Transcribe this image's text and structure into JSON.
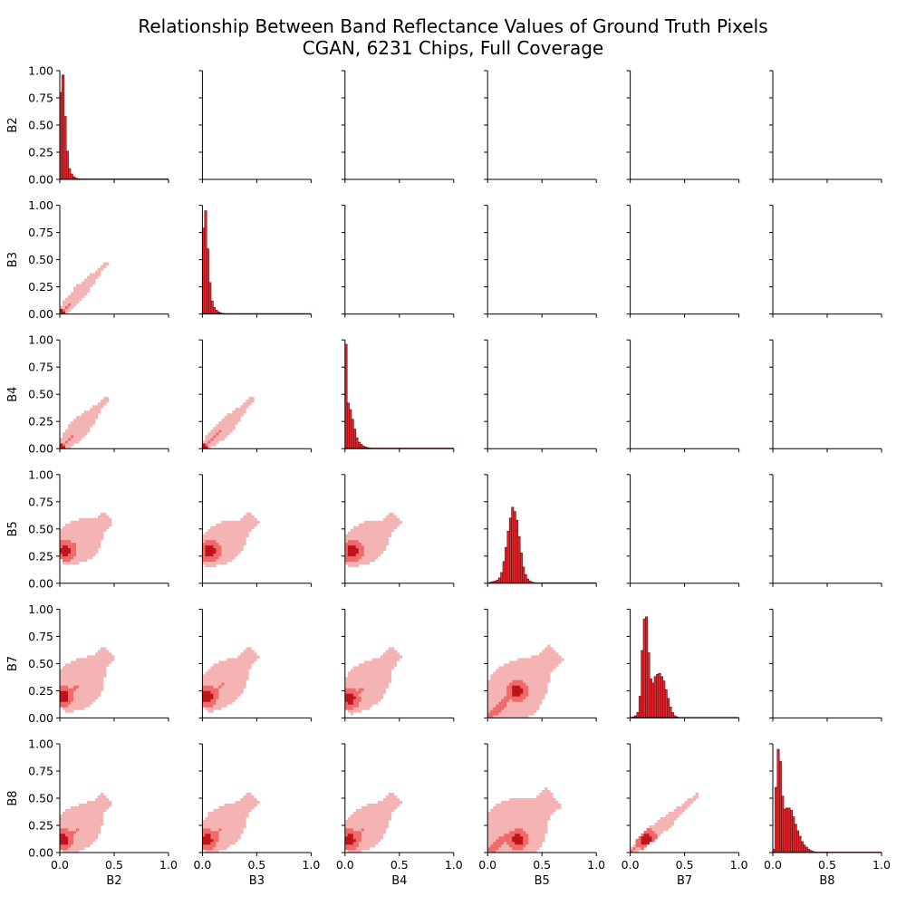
{
  "chart_data": {
    "type": "pairplot",
    "title": "Relationship Between Band Reflectance Values of Ground Truth Pixels",
    "subtitle": "CGAN, 6231 Chips, Full Coverage",
    "variables": [
      "B2",
      "B3",
      "B4",
      "B5",
      "B7",
      "B8"
    ],
    "xlim": [
      0.0,
      1.0
    ],
    "ylim": [
      0.0,
      1.0
    ],
    "x_ticks": [
      "0.0",
      "0.5",
      "1.0"
    ],
    "y_ticks": [
      "0.00",
      "0.25",
      "0.50",
      "0.75",
      "1.00"
    ],
    "grid": false,
    "colors": {
      "bar": "#e8262e",
      "bar_edge": "#5a0a0c",
      "heat_light": "#f4b4b4",
      "heat_mid": "#f06a6a",
      "heat_dark": "#c0141c"
    },
    "diagonal": {
      "type": "histogram",
      "bin_width": 0.02,
      "histograms": {
        "B2": [
          0.8,
          0.96,
          0.58,
          0.26,
          0.1,
          0.05,
          0.025,
          0.012,
          0.006,
          0.003
        ],
        "B3": [
          0.79,
          0.95,
          0.6,
          0.29,
          0.12,
          0.06,
          0.035,
          0.02,
          0.01,
          0.005,
          0.003
        ],
        "B4": [
          0.96,
          0.42,
          0.36,
          0.27,
          0.18,
          0.1,
          0.06,
          0.04,
          0.025,
          0.015,
          0.01,
          0.006,
          0.003
        ],
        "B5": [
          0.005,
          0.01,
          0.015,
          0.02,
          0.03,
          0.05,
          0.1,
          0.2,
          0.33,
          0.48,
          0.6,
          0.7,
          0.66,
          0.58,
          0.43,
          0.28,
          0.15,
          0.08,
          0.04,
          0.02,
          0.01,
          0.006
        ],
        "B7": [
          0.005,
          0.01,
          0.02,
          0.05,
          0.2,
          0.62,
          0.91,
          0.93,
          0.6,
          0.36,
          0.32,
          0.38,
          0.4,
          0.41,
          0.38,
          0.34,
          0.26,
          0.18,
          0.1,
          0.05,
          0.02,
          0.01,
          0.005
        ],
        "B8": [
          0.03,
          0.6,
          0.95,
          0.84,
          0.52,
          0.4,
          0.41,
          0.41,
          0.39,
          0.33,
          0.26,
          0.2,
          0.15,
          0.1,
          0.07,
          0.05,
          0.03,
          0.02,
          0.01,
          0.006,
          0.003
        ]
      }
    },
    "lower": {
      "type": "heatmap_2d_histogram",
      "panels": {
        "B3|B2": {
          "core": [
            [
              0.0,
              0.0
            ],
            [
              0.43,
              0.47
            ]
          ],
          "width": 0.05
        },
        "B4|B2": {
          "core": [
            [
              0.0,
              0.0
            ],
            [
              0.43,
              0.46
            ]
          ],
          "width": 0.07
        },
        "B4|B3": {
          "core": [
            [
              0.0,
              0.0
            ],
            [
              0.47,
              0.46
            ]
          ],
          "width": 0.06
        },
        "B5|B2": {
          "core": [
            [
              0.0,
              0.25
            ],
            [
              0.44,
              0.6
            ]
          ],
          "width": 0.16,
          "hot": [
            0.05,
            0.3
          ]
        },
        "B5|B3": {
          "core": [
            [
              0.0,
              0.22
            ],
            [
              0.47,
              0.6
            ]
          ],
          "width": 0.15,
          "hot": [
            0.07,
            0.3
          ]
        },
        "B5|B4": {
          "core": [
            [
              0.0,
              0.22
            ],
            [
              0.47,
              0.6
            ]
          ],
          "width": 0.15,
          "hot": [
            0.07,
            0.3
          ]
        },
        "B7|B2": {
          "core": [
            [
              0.0,
              0.12
            ],
            [
              0.44,
              0.6
            ]
          ],
          "width": 0.18,
          "hot": [
            0.03,
            0.2
          ]
        },
        "B7|B3": {
          "core": [
            [
              0.0,
              0.12
            ],
            [
              0.47,
              0.6
            ]
          ],
          "width": 0.16,
          "hot": [
            0.04,
            0.2
          ]
        },
        "B7|B4": {
          "core": [
            [
              0.0,
              0.1
            ],
            [
              0.47,
              0.6
            ]
          ],
          "width": 0.16,
          "hot": [
            0.04,
            0.18
          ]
        },
        "B7|B5": {
          "core": [
            [
              0.02,
              0.02
            ],
            [
              0.62,
              0.6
            ]
          ],
          "width": 0.22,
          "hot": [
            0.27,
            0.25
          ]
        },
        "B8|B2": {
          "core": [
            [
              0.0,
              0.05
            ],
            [
              0.43,
              0.5
            ]
          ],
          "width": 0.16,
          "hot": [
            0.03,
            0.12
          ]
        },
        "B8|B3": {
          "core": [
            [
              0.0,
              0.05
            ],
            [
              0.46,
              0.5
            ]
          ],
          "width": 0.15,
          "hot": [
            0.04,
            0.12
          ]
        },
        "B8|B4": {
          "core": [
            [
              0.0,
              0.05
            ],
            [
              0.47,
              0.5
            ]
          ],
          "width": 0.15,
          "hot": [
            0.04,
            0.12
          ]
        },
        "B8|B5": {
          "core": [
            [
              0.02,
              0.02
            ],
            [
              0.6,
              0.5
            ]
          ],
          "width": 0.24,
          "hot": [
            0.28,
            0.12
          ]
        },
        "B8|B7": {
          "core": [
            [
              0.0,
              0.0
            ],
            [
              0.62,
              0.53
            ]
          ],
          "width": 0.05,
          "hot": [
            0.15,
            0.12
          ]
        }
      }
    }
  }
}
